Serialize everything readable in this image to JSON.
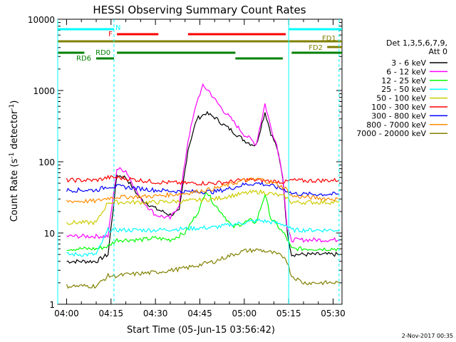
{
  "chart_data": {
    "type": "line",
    "title": "HESSI Observing Summary Count Rates",
    "xlabel": "Start Time (05-Jun-15 03:56:42)",
    "ylabel_main": "Count Rate (s",
    "ylabel_sup1": "-1",
    "ylabel_mid": " detector",
    "ylabel_sup2": "-1",
    "ylabel_end": ")",
    "x_range_min": [
      -3.0,
      93.0
    ],
    "y_range": [
      1,
      10000
    ],
    "y_scale": "log",
    "x_ticks": [
      {
        "label": "04:00",
        "min": 0
      },
      {
        "label": "04:15",
        "min": 15
      },
      {
        "label": "04:30",
        "min": 30
      },
      {
        "label": "04:45",
        "min": 45
      },
      {
        "label": "05:00",
        "min": 60
      },
      {
        "label": "05:15",
        "min": 75
      },
      {
        "label": "05:30",
        "min": 90
      }
    ],
    "y_ticks": [
      {
        "label": "1",
        "v": 1
      },
      {
        "label": "10",
        "v": 10
      },
      {
        "label": "100",
        "v": 100
      },
      {
        "label": "1000",
        "v": 1000
      },
      {
        "label": "10000",
        "v": 10000
      }
    ],
    "legend_header": [
      "Det 1,3,5,6,7,9,",
      "Att 0"
    ],
    "timestamp": "2-Nov-2017 00:35",
    "series": [
      {
        "name": "3 - 6 keV",
        "color": "#000000",
        "x": [
          0,
          10,
          14,
          17,
          20,
          25,
          30,
          35,
          38,
          41,
          44,
          47,
          50,
          53,
          56,
          58,
          60,
          62,
          64,
          67,
          69,
          71,
          73,
          74.5,
          76,
          80,
          85,
          90,
          92
        ],
        "y": [
          4,
          4,
          5,
          65,
          60,
          30,
          22,
          18,
          20,
          150,
          400,
          480,
          420,
          330,
          270,
          230,
          200,
          180,
          170,
          500,
          250,
          160,
          60,
          10,
          5,
          5,
          5,
          5,
          5
        ]
      },
      {
        "name": "6 - 12 keV",
        "color": "#ff00ff",
        "x": [
          0,
          10,
          14,
          17,
          20,
          25,
          30,
          35,
          38,
          41,
          44,
          46,
          48,
          50,
          53,
          56,
          58,
          60,
          62,
          64,
          67,
          69,
          71,
          73,
          74.5,
          76,
          80,
          85,
          90,
          92
        ],
        "y": [
          9,
          9,
          9,
          80,
          75,
          30,
          18,
          16,
          25,
          200,
          700,
          1150,
          1000,
          750,
          520,
          380,
          300,
          240,
          210,
          175,
          650,
          300,
          170,
          65,
          11,
          8,
          8,
          8,
          8,
          8
        ]
      },
      {
        "name": "12 - 25 keV",
        "color": "#00ff00",
        "x": [
          0,
          10,
          14,
          17,
          20,
          25,
          30,
          35,
          40,
          45,
          47,
          50,
          53,
          56,
          60,
          62,
          64,
          67,
          69,
          71,
          74,
          76,
          80,
          85,
          90,
          92
        ],
        "y": [
          6,
          6,
          6.5,
          8,
          8,
          8,
          8.5,
          8,
          10,
          22,
          40,
          25,
          18,
          12,
          14,
          15,
          14,
          35,
          16,
          13,
          9,
          6,
          6,
          6,
          6,
          6
        ]
      },
      {
        "name": "25 - 50 keV",
        "color": "#00ffff",
        "x": [
          0,
          10,
          14,
          17,
          20,
          30,
          40,
          50,
          55,
          60,
          65,
          70,
          74,
          76,
          80,
          90,
          92
        ],
        "y": [
          5,
          5,
          11,
          11,
          11,
          11,
          11.5,
          12,
          13,
          14,
          15,
          14,
          13,
          11,
          11,
          11,
          11
        ]
      },
      {
        "name": "50 - 100 keV",
        "color": "#cccc00",
        "x": [
          0,
          10,
          14,
          17,
          20,
          30,
          40,
          50,
          55,
          60,
          65,
          70,
          74,
          76,
          80,
          90,
          92
        ],
        "y": [
          14,
          14,
          27,
          27,
          27,
          27,
          28,
          30,
          33,
          36,
          38,
          35,
          32,
          27,
          27,
          27,
          27
        ]
      },
      {
        "name": "100 - 300 keV",
        "color": "#ff0000",
        "x": [
          0,
          10,
          14,
          17,
          20,
          30,
          40,
          50,
          55,
          60,
          65,
          70,
          74,
          76,
          80,
          90,
          92
        ],
        "y": [
          55,
          55,
          60,
          60,
          58,
          52,
          50,
          50,
          52,
          56,
          55,
          53,
          52,
          55,
          54,
          55,
          55
        ]
      },
      {
        "name": "300 - 800 keV",
        "color": "#0000ff",
        "x": [
          0,
          10,
          14,
          17,
          20,
          30,
          40,
          50,
          55,
          60,
          65,
          70,
          74,
          76,
          80,
          90,
          92
        ],
        "y": [
          40,
          40,
          45,
          45,
          44,
          40,
          38,
          38,
          42,
          48,
          50,
          45,
          40,
          36,
          35,
          35,
          35
        ]
      },
      {
        "name": "800 - 7000 keV",
        "color": "#ff8c00",
        "x": [
          0,
          10,
          14,
          17,
          20,
          30,
          40,
          50,
          55,
          60,
          65,
          70,
          74,
          76,
          80,
          90,
          92
        ],
        "y": [
          28,
          28,
          31,
          32,
          32,
          33,
          36,
          42,
          48,
          55,
          57,
          50,
          42,
          33,
          32,
          30,
          30
        ]
      },
      {
        "name": "7000 - 20000 keV",
        "color": "#808000",
        "x": [
          0,
          10,
          14,
          17,
          20,
          30,
          40,
          50,
          55,
          60,
          65,
          70,
          74,
          76,
          80,
          90,
          92
        ],
        "y": [
          1.8,
          1.8,
          2.5,
          2.5,
          2.6,
          2.8,
          3.2,
          4,
          4.8,
          5.6,
          5.8,
          5.2,
          4.5,
          2.5,
          2,
          2,
          2
        ]
      }
    ],
    "flag_bars": [
      {
        "label": "N",
        "color": "#00ffff",
        "segments": [
          [
            -3,
            16
          ],
          [
            75,
            93
          ]
        ],
        "level": 0
      },
      {
        "label": "F",
        "color": "#ff0000",
        "segments": [
          [
            17,
            31
          ],
          [
            41,
            74
          ]
        ],
        "level": 1
      },
      {
        "label": "FD1",
        "color": "#808000",
        "segments": [
          [
            -3,
            93
          ]
        ],
        "level": 2
      },
      {
        "label": "FD2",
        "color": "#808000",
        "segments": [
          [
            88,
            93
          ]
        ],
        "level": 3
      },
      {
        "label": "RD0",
        "color": "#008000",
        "segments": [
          [
            17,
            57
          ],
          [
            76,
            93
          ]
        ],
        "level": 4
      },
      {
        "label": "",
        "color": "#008000",
        "segments": [
          [
            -3,
            6
          ]
        ],
        "level": 4
      },
      {
        "label": "RD6",
        "color": "#008000",
        "segments": [
          [
            10,
            16
          ],
          [
            57,
            73
          ]
        ],
        "level": 5
      }
    ],
    "vlines": [
      {
        "min": -3.0,
        "color": "#00ffff",
        "dashed": false
      },
      {
        "min": 16.0,
        "color": "#00ffff",
        "dashed": true
      },
      {
        "min": 75.0,
        "color": "#00ffff",
        "dashed": false
      },
      {
        "min": 92.0,
        "color": "#00ffff",
        "dashed": true
      }
    ]
  }
}
